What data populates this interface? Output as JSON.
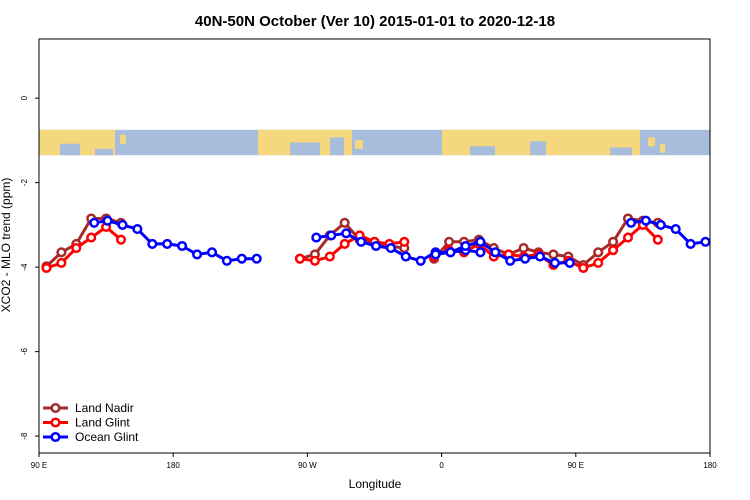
{
  "chart_data": {
    "type": "line",
    "title": "40N-50N October (Ver 10)   2015-01-01 to 2020-12-18",
    "xlabel": "Longitude",
    "ylabel": "XCO2 - MLO trend (ppm)",
    "xlim": [
      0,
      450
    ],
    "ylim": [
      -8.4,
      1.4
    ],
    "x_ticks": [
      {
        "value": 0,
        "label": "90 E"
      },
      {
        "value": 90,
        "label": "180"
      },
      {
        "value": 180,
        "label": "90 W"
      },
      {
        "value": 270,
        "label": "0"
      },
      {
        "value": 360,
        "label": "90 E"
      },
      {
        "value": 450,
        "label": "180"
      }
    ],
    "y_ticks": [
      {
        "value": 0,
        "label": "0"
      },
      {
        "value": -2,
        "label": "-2"
      },
      {
        "value": -4,
        "label": "-4"
      },
      {
        "value": -6,
        "label": "-6"
      },
      {
        "value": -8,
        "label": "-8"
      }
    ],
    "map_band": {
      "ymax": -0.75,
      "ymin": -1.35,
      "ocean_color": "#a8bddb",
      "land_color": "#f5d77e"
    },
    "legend_position": "bottom-left",
    "series": [
      {
        "name": "Land Nadir",
        "color": "#a52a2a",
        "segments": [
          [
            [
              5,
              -3.98
            ],
            [
              15,
              -3.65
            ],
            [
              25,
              -3.45
            ],
            [
              35,
              -2.85
            ],
            [
              45,
              -2.85
            ],
            [
              55,
              -2.95
            ]
          ],
          [
            [
              175,
              -3.8
            ],
            [
              185,
              -3.7
            ],
            [
              195,
              -3.25
            ],
            [
              205,
              -2.95
            ],
            [
              215,
              -3.35
            ],
            [
              225,
              -3.4
            ],
            [
              235,
              -3.5
            ],
            [
              245,
              -3.55
            ]
          ],
          [
            [
              265,
              -3.8
            ],
            [
              275,
              -3.4
            ],
            [
              285,
              -3.4
            ],
            [
              295,
              -3.35
            ],
            [
              305,
              -3.55
            ],
            [
              315,
              -3.7
            ],
            [
              325,
              -3.55
            ],
            [
              335,
              -3.65
            ],
            [
              345,
              -3.7
            ],
            [
              355,
              -3.75
            ],
            [
              365,
              -3.95
            ],
            [
              375,
              -3.65
            ],
            [
              385,
              -3.4
            ],
            [
              395,
              -2.85
            ],
            [
              405,
              -2.9
            ],
            [
              415,
              -2.95
            ]
          ]
        ]
      },
      {
        "name": "Land Glint",
        "color": "#ff0000",
        "segments": [
          [
            [
              5,
              -4.02
            ],
            [
              15,
              -3.9
            ],
            [
              25,
              -3.55
            ],
            [
              35,
              -3.3
            ],
            [
              45,
              -3.05
            ],
            [
              55,
              -3.35
            ]
          ],
          [
            [
              175,
              -3.8
            ],
            [
              185,
              -3.85
            ],
            [
              195,
              -3.75
            ],
            [
              205,
              -3.45
            ],
            [
              215,
              -3.25
            ],
            [
              225,
              -3.4
            ],
            [
              235,
              -3.45
            ],
            [
              245,
              -3.4
            ]
          ],
          [
            [
              265,
              -3.75
            ],
            [
              275,
              -3.6
            ],
            [
              285,
              -3.65
            ],
            [
              295,
              -3.45
            ],
            [
              305,
              -3.75
            ],
            [
              315,
              -3.7
            ],
            [
              325,
              -3.75
            ],
            [
              335,
              -3.7
            ],
            [
              345,
              -3.95
            ],
            [
              355,
              -3.85
            ],
            [
              365,
              -4.02
            ],
            [
              375,
              -3.9
            ],
            [
              385,
              -3.6
            ],
            [
              395,
              -3.3
            ],
            [
              405,
              -3.0
            ],
            [
              415,
              -3.35
            ]
          ]
        ]
      },
      {
        "name": "Ocean Glint",
        "color": "#0000ff",
        "segments": [
          [
            [
              37,
              -2.95
            ],
            [
              46,
              -2.9
            ],
            [
              56,
              -3.0
            ],
            [
              66,
              -3.1
            ],
            [
              76,
              -3.45
            ],
            [
              86,
              -3.45
            ],
            [
              96,
              -3.5
            ],
            [
              106,
              -3.7
            ],
            [
              116,
              -3.65
            ],
            [
              126,
              -3.85
            ],
            [
              136,
              -3.8
            ],
            [
              146,
              -3.8
            ]
          ],
          [
            [
              186,
              -3.3
            ],
            [
              196,
              -3.25
            ],
            [
              206,
              -3.2
            ],
            [
              216,
              -3.4
            ],
            [
              226,
              -3.5
            ],
            [
              236,
              -3.55
            ],
            [
              246,
              -3.75
            ],
            [
              256,
              -3.85
            ],
            [
              266,
              -3.65
            ],
            [
              276,
              -3.65
            ],
            [
              286,
              -3.6
            ],
            [
              296,
              -3.65
            ]
          ],
          [
            [
              266,
              -3.7
            ],
            [
              276,
              -3.65
            ],
            [
              286,
              -3.5
            ],
            [
              296,
              -3.4
            ],
            [
              306,
              -3.65
            ],
            [
              316,
              -3.85
            ],
            [
              326,
              -3.8
            ],
            [
              336,
              -3.75
            ],
            [
              346,
              -3.9
            ],
            [
              356,
              -3.9
            ]
          ],
          [
            [
              397,
              -2.95
            ],
            [
              407,
              -2.9
            ],
            [
              417,
              -3.0
            ],
            [
              427,
              -3.1
            ],
            [
              437,
              -3.45
            ],
            [
              447,
              -3.4
            ]
          ]
        ]
      }
    ]
  }
}
